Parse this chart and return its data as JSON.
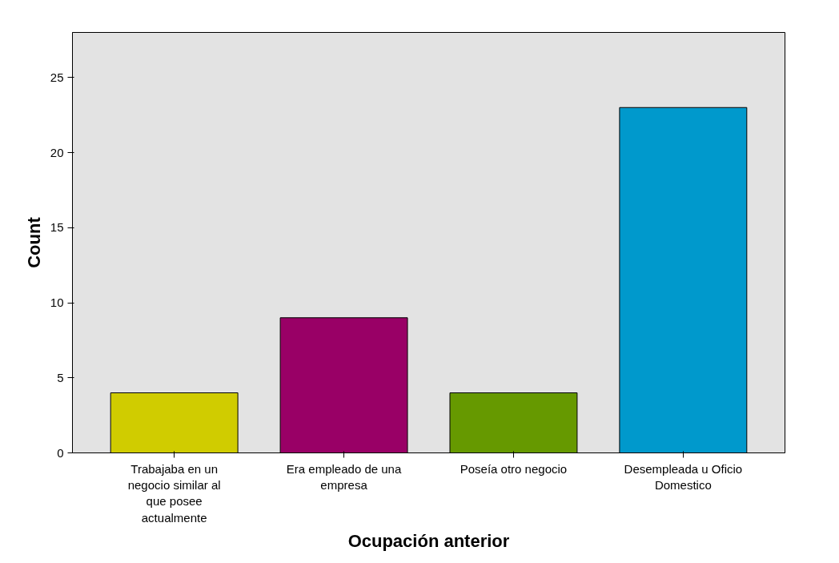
{
  "chart_data": {
    "type": "bar",
    "xlabel": "Ocupación anterior",
    "ylabel": "Count",
    "categories": [
      "Trabajaba en un negocio similar al que posee actualmente",
      "Era empleado de una empresa",
      "Poseía otro negocio",
      "Desempleada u Oficio Domestico"
    ],
    "values": [
      4,
      9,
      4,
      23
    ],
    "colors": [
      "#d0cc00",
      "#990066",
      "#669900",
      "#0099cc"
    ],
    "ylim": [
      0,
      28
    ],
    "yticks": [
      0,
      5,
      10,
      15,
      20,
      25
    ],
    "grid": false
  }
}
